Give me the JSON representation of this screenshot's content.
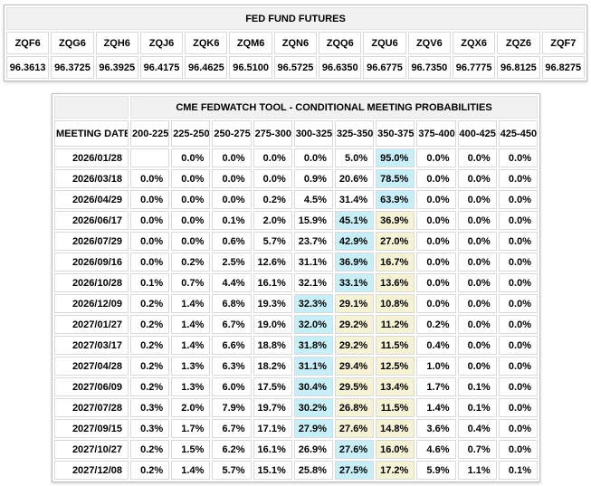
{
  "colors": {
    "highlight_max_cyan": "#c8eff7",
    "highlight_secondary_yellow": "#f5f2d6",
    "header_bg": "#f1f1f1",
    "cell_border": "#d9d9d9",
    "text": "#000000"
  },
  "futures_table": {
    "title": "FED FUND FUTURES",
    "contracts": [
      "ZQF6",
      "ZQG6",
      "ZQH6",
      "ZQJ6",
      "ZQK6",
      "ZQM6",
      "ZQN6",
      "ZQQ6",
      "ZQU6",
      "ZQV6",
      "ZQX6",
      "ZQZ6",
      "ZQF7"
    ],
    "prices": [
      "96.3613",
      "96.3725",
      "96.3925",
      "96.4175",
      "96.4625",
      "96.5100",
      "96.5725",
      "96.6350",
      "96.6775",
      "96.7350",
      "96.7775",
      "96.8125",
      "96.8275"
    ]
  },
  "probabilities_table": {
    "title": "CME FEDWATCH TOOL - CONDITIONAL MEETING PROBABILITIES",
    "date_column_header": "MEETING DATE",
    "rate_range_headers": [
      "200-225",
      "225-250",
      "250-275",
      "275-300",
      "300-325",
      "325-350",
      "350-375",
      "375-400",
      "400-425",
      "425-450"
    ],
    "rows": [
      {
        "date": "2026/01/28",
        "values": [
          "",
          "0.0%",
          "0.0%",
          "0.0%",
          "0.0%",
          "5.0%",
          "95.0%",
          "0.0%",
          "0.0%",
          "0.0%"
        ],
        "max_index": 6,
        "secondary_indices": []
      },
      {
        "date": "2026/03/18",
        "values": [
          "0.0%",
          "0.0%",
          "0.0%",
          "0.0%",
          "0.9%",
          "20.6%",
          "78.5%",
          "0.0%",
          "0.0%",
          "0.0%"
        ],
        "max_index": 6,
        "secondary_indices": []
      },
      {
        "date": "2026/04/29",
        "values": [
          "0.0%",
          "0.0%",
          "0.0%",
          "0.2%",
          "4.5%",
          "31.4%",
          "63.9%",
          "0.0%",
          "0.0%",
          "0.0%"
        ],
        "max_index": 6,
        "secondary_indices": []
      },
      {
        "date": "2026/06/17",
        "values": [
          "0.0%",
          "0.0%",
          "0.1%",
          "2.0%",
          "15.9%",
          "45.1%",
          "36.9%",
          "0.0%",
          "0.0%",
          "0.0%"
        ],
        "max_index": 5,
        "secondary_indices": [
          6
        ]
      },
      {
        "date": "2026/07/29",
        "values": [
          "0.0%",
          "0.0%",
          "0.6%",
          "5.7%",
          "23.7%",
          "42.9%",
          "27.0%",
          "0.0%",
          "0.0%",
          "0.0%"
        ],
        "max_index": 5,
        "secondary_indices": [
          6
        ]
      },
      {
        "date": "2026/09/16",
        "values": [
          "0.0%",
          "0.2%",
          "2.5%",
          "12.6%",
          "31.1%",
          "36.9%",
          "16.7%",
          "0.0%",
          "0.0%",
          "0.0%"
        ],
        "max_index": 5,
        "secondary_indices": [
          6
        ]
      },
      {
        "date": "2026/10/28",
        "values": [
          "0.1%",
          "0.7%",
          "4.4%",
          "16.1%",
          "32.1%",
          "33.1%",
          "13.6%",
          "0.0%",
          "0.0%",
          "0.0%"
        ],
        "max_index": 5,
        "secondary_indices": [
          6
        ]
      },
      {
        "date": "2026/12/09",
        "values": [
          "0.2%",
          "1.4%",
          "6.8%",
          "19.3%",
          "32.3%",
          "29.1%",
          "10.8%",
          "0.0%",
          "0.0%",
          "0.0%"
        ],
        "max_index": 4,
        "secondary_indices": [
          5,
          6
        ]
      },
      {
        "date": "2027/01/27",
        "values": [
          "0.2%",
          "1.4%",
          "6.7%",
          "19.0%",
          "32.0%",
          "29.2%",
          "11.2%",
          "0.2%",
          "0.0%",
          "0.0%"
        ],
        "max_index": 4,
        "secondary_indices": [
          5,
          6
        ]
      },
      {
        "date": "2027/03/17",
        "values": [
          "0.2%",
          "1.4%",
          "6.6%",
          "18.8%",
          "31.8%",
          "29.2%",
          "11.5%",
          "0.4%",
          "0.0%",
          "0.0%"
        ],
        "max_index": 4,
        "secondary_indices": [
          5,
          6
        ]
      },
      {
        "date": "2027/04/28",
        "values": [
          "0.2%",
          "1.3%",
          "6.3%",
          "18.2%",
          "31.1%",
          "29.4%",
          "12.5%",
          "1.0%",
          "0.0%",
          "0.0%"
        ],
        "max_index": 4,
        "secondary_indices": [
          5,
          6
        ]
      },
      {
        "date": "2027/06/09",
        "values": [
          "0.2%",
          "1.3%",
          "6.0%",
          "17.5%",
          "30.4%",
          "29.5%",
          "13.4%",
          "1.7%",
          "0.1%",
          "0.0%"
        ],
        "max_index": 4,
        "secondary_indices": [
          5,
          6
        ]
      },
      {
        "date": "2027/07/28",
        "values": [
          "0.3%",
          "2.0%",
          "7.9%",
          "19.7%",
          "30.2%",
          "26.8%",
          "11.5%",
          "1.4%",
          "0.1%",
          "0.0%"
        ],
        "max_index": 4,
        "secondary_indices": [
          5,
          6
        ]
      },
      {
        "date": "2027/09/15",
        "values": [
          "0.3%",
          "1.7%",
          "6.7%",
          "17.1%",
          "27.9%",
          "27.6%",
          "14.8%",
          "3.6%",
          "0.4%",
          "0.0%"
        ],
        "max_index": 4,
        "secondary_indices": [
          5,
          6
        ]
      },
      {
        "date": "2027/10/27",
        "values": [
          "0.2%",
          "1.5%",
          "6.2%",
          "16.1%",
          "26.9%",
          "27.6%",
          "16.0%",
          "4.6%",
          "0.7%",
          "0.0%"
        ],
        "max_index": 5,
        "secondary_indices": [
          6
        ]
      },
      {
        "date": "2027/12/08",
        "values": [
          "0.2%",
          "1.4%",
          "5.7%",
          "15.1%",
          "25.8%",
          "27.5%",
          "17.2%",
          "5.9%",
          "1.1%",
          "0.1%"
        ],
        "max_index": 5,
        "secondary_indices": [
          6
        ]
      }
    ]
  }
}
